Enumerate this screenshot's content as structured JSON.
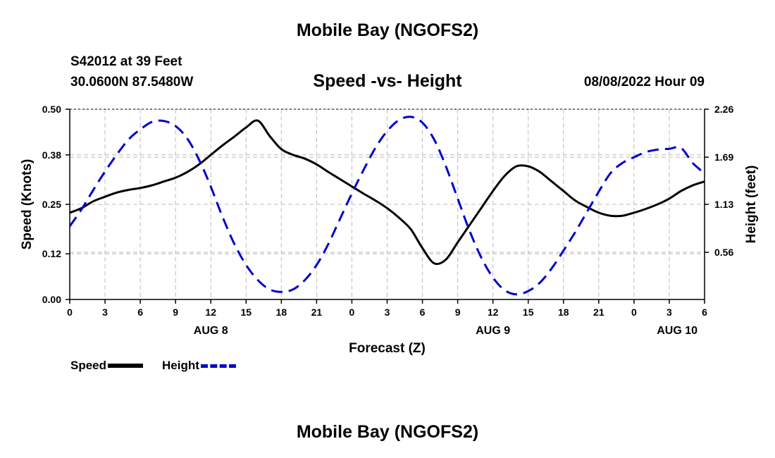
{
  "header": {
    "title": "Mobile Bay (NGOFS2)",
    "station_id": "S42012 at 39 Feet",
    "station_coords": "30.0600N  87.5480W",
    "subtitle": "Speed -vs- Height",
    "datetime": "08/08/2022 Hour 09"
  },
  "footer": {
    "title": "Mobile Bay (NGOFS2)"
  },
  "legend": {
    "speed_label": "Speed",
    "height_label": "Height"
  },
  "colors": {
    "speed": "#000000",
    "height": "#0000cc",
    "grid": "#bbbbbb"
  },
  "chart_data": {
    "type": "line",
    "title": "Speed -vs- Height",
    "xlabel": "Forecast (Z)",
    "ylabel": "Speed (Knots)",
    "y2label": "Height (feet)",
    "x_ticks": [
      "0",
      "3",
      "6",
      "9",
      "12",
      "15",
      "18",
      "21",
      "0",
      "3",
      "6",
      "9",
      "12",
      "15",
      "18",
      "21",
      "0",
      "3",
      "6"
    ],
    "date_labels": [
      {
        "label": "AUG 8",
        "hour": 12
      },
      {
        "label": "AUG 9",
        "hour": 36
      },
      {
        "label": "AUG 10",
        "hour": 57
      }
    ],
    "xlim": [
      0,
      54
    ],
    "ylim": [
      0,
      0.5
    ],
    "y_ticks": [
      "0.00",
      "0.12",
      "0.25",
      "0.38",
      "0.50"
    ],
    "y2lim": [
      0,
      2.26
    ],
    "y2_ticks": [
      "0.56",
      "1.13",
      "1.69",
      "2.26"
    ],
    "grid": true,
    "series": [
      {
        "name": "Speed",
        "axis": "left",
        "style": "solid",
        "x": [
          0,
          1,
          2,
          3,
          4,
          5,
          6,
          7,
          8,
          9,
          10,
          11,
          12,
          13,
          14,
          15,
          16,
          17,
          18,
          19,
          20,
          21,
          22,
          23,
          24,
          25,
          26,
          27,
          28,
          29,
          30,
          31,
          32,
          33,
          34,
          35,
          36,
          37,
          38,
          39,
          40,
          41,
          42,
          43,
          44,
          45,
          46,
          47,
          48,
          49,
          50,
          51,
          52,
          53,
          54
        ],
        "values": [
          0.228,
          0.24,
          0.258,
          0.27,
          0.281,
          0.288,
          0.293,
          0.3,
          0.31,
          0.32,
          0.335,
          0.355,
          0.38,
          0.405,
          0.428,
          0.452,
          0.47,
          0.43,
          0.395,
          0.38,
          0.37,
          0.355,
          0.335,
          0.316,
          0.297,
          0.278,
          0.26,
          0.24,
          0.215,
          0.185,
          0.135,
          0.095,
          0.105,
          0.15,
          0.195,
          0.24,
          0.285,
          0.325,
          0.35,
          0.35,
          0.335,
          0.31,
          0.285,
          0.26,
          0.243,
          0.228,
          0.22,
          0.22,
          0.228,
          0.238,
          0.25,
          0.265,
          0.285,
          0.3,
          0.31
        ]
      },
      {
        "name": "Height",
        "axis": "right",
        "style": "dashed",
        "x": [
          0,
          1,
          2,
          3,
          4,
          5,
          6,
          7,
          8,
          9,
          10,
          11,
          12,
          13,
          14,
          15,
          16,
          17,
          18,
          19,
          20,
          21,
          22,
          23,
          24,
          25,
          26,
          27,
          28,
          29,
          30,
          31,
          32,
          33,
          34,
          35,
          36,
          37,
          38,
          39,
          40,
          41,
          42,
          43,
          44,
          45,
          46,
          47,
          48,
          49,
          50,
          51,
          52,
          53,
          54
        ],
        "values": [
          0.87,
          1.07,
          1.3,
          1.52,
          1.72,
          1.9,
          2.02,
          2.11,
          2.12,
          2.06,
          1.91,
          1.66,
          1.34,
          0.98,
          0.66,
          0.41,
          0.23,
          0.12,
          0.09,
          0.12,
          0.23,
          0.41,
          0.66,
          0.96,
          1.26,
          1.54,
          1.8,
          2.0,
          2.13,
          2.17,
          2.1,
          1.9,
          1.58,
          1.2,
          0.82,
          0.5,
          0.26,
          0.11,
          0.06,
          0.1,
          0.2,
          0.37,
          0.58,
          0.8,
          1.04,
          1.28,
          1.5,
          1.62,
          1.69,
          1.75,
          1.78,
          1.79,
          1.8,
          1.62,
          1.5
        ]
      }
    ]
  }
}
